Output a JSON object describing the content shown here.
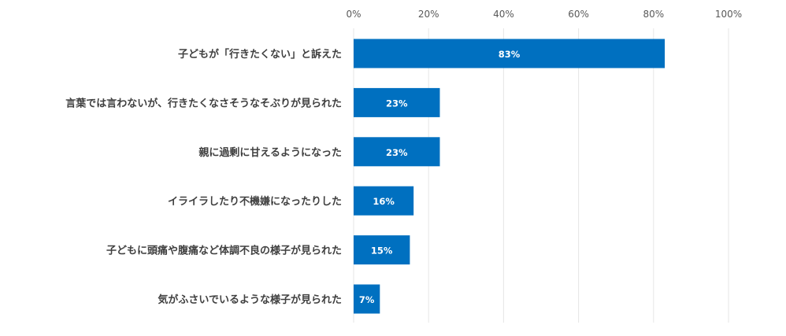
{
  "chart_data": {
    "type": "bar",
    "orientation": "horizontal",
    "categories": [
      "子どもが「行きたくない」と訴えた",
      "言葉では言わないが、行きたくなさそうなそぶりが見られた",
      "親に過剰に甘えるようになった",
      "イライラしたり不機嫌になったりした",
      "子どもに頭痛や腹痛など体調不良の様子が見られた",
      "気がふさいでいるような様子が見られた"
    ],
    "values": [
      83,
      23,
      23,
      16,
      15,
      7
    ],
    "value_labels": [
      "83%",
      "23%",
      "23%",
      "16%",
      "15%",
      "7%"
    ],
    "x_ticks": [
      0,
      20,
      40,
      60,
      80,
      100
    ],
    "x_tick_labels": [
      "0%",
      "20%",
      "40%",
      "60%",
      "80%",
      "100%"
    ],
    "xlim": [
      0,
      100
    ],
    "x_axis_position": "top",
    "grid": true,
    "bar_color": "#0070c0"
  }
}
